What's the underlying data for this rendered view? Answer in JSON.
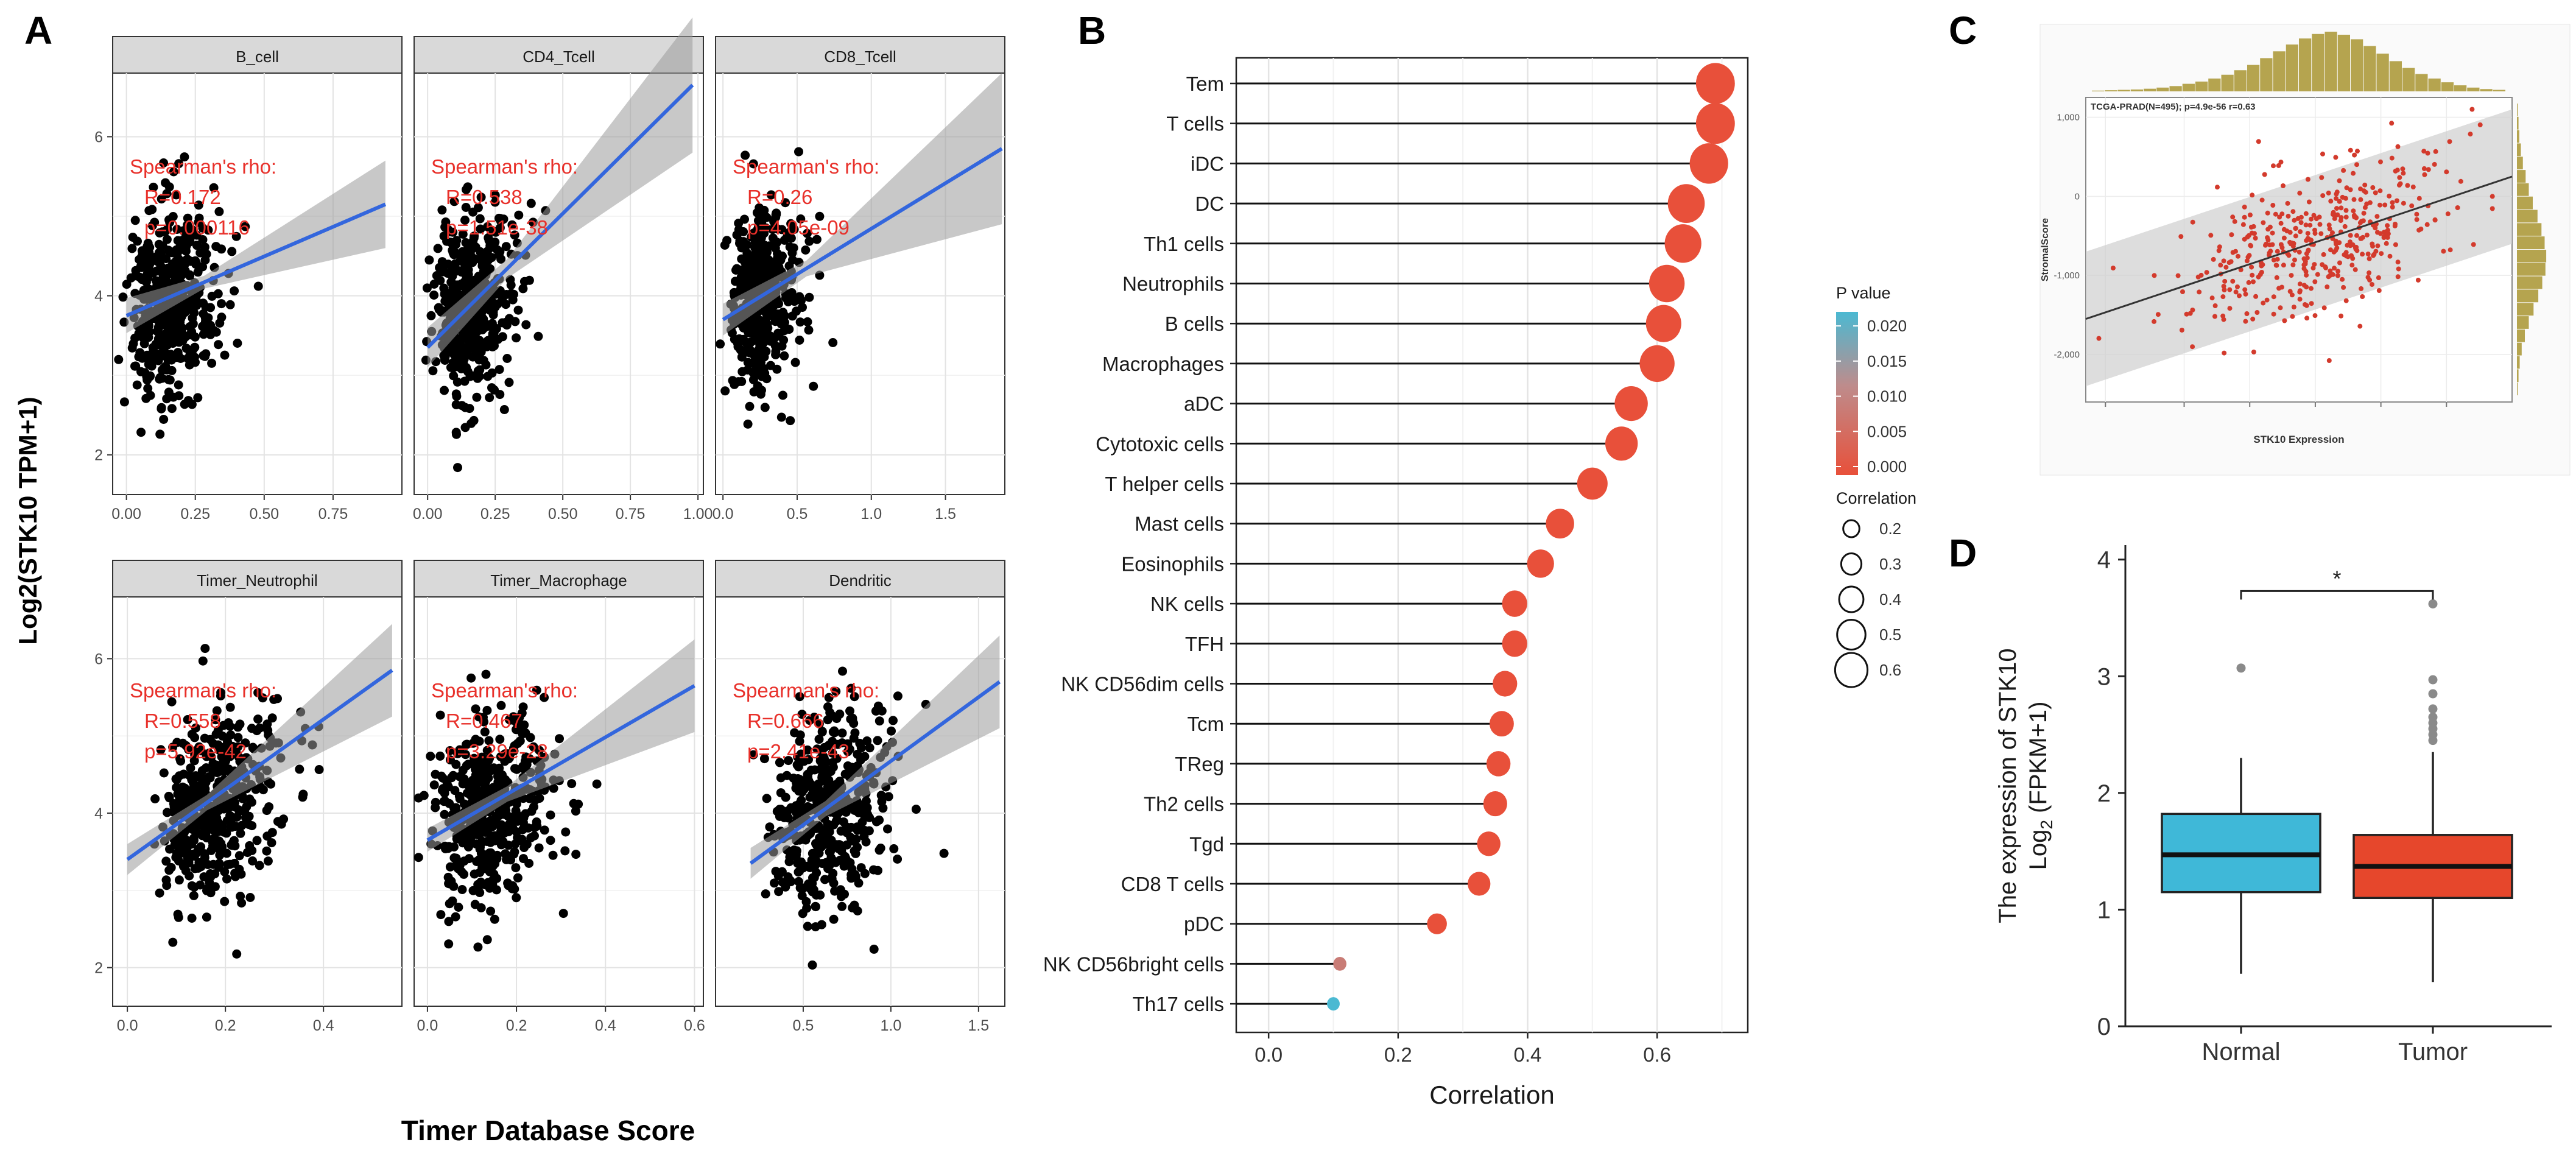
{
  "figure": {
    "panel_labels": [
      "A",
      "B",
      "C",
      "D"
    ]
  },
  "chart_data": [
    {
      "panel": "A",
      "type": "scatter",
      "ylabel": "Log2(STK10 TPM+1)",
      "xlabel": "Timer Database Score",
      "stat_label": "Spearman's rho:",
      "y_ticks": [
        "2",
        "4",
        "6"
      ],
      "ylim": [
        1.5,
        6.8
      ],
      "facets": [
        {
          "title": "B_cell",
          "xlim": [
            -0.05,
            1.0
          ],
          "x_ticks": [
            "0.00",
            "0.25",
            "0.50",
            "0.75"
          ],
          "x_tick_values": [
            0,
            0.25,
            0.5,
            0.75
          ],
          "r_text": "R=0.172",
          "p_text": "p=0.000116",
          "line": [
            [
              0,
              3.75
            ],
            [
              0.94,
              5.15
            ]
          ],
          "band": [
            0.08,
            0.22,
            0.55
          ],
          "xc": 0.12,
          "xs": 0.11,
          "yc": 3.9,
          "ys": 0.6,
          "seed": 11
        },
        {
          "title": "CD4_Tcell",
          "xlim": [
            -0.05,
            1.02
          ],
          "x_ticks": [
            "0.00",
            "0.25",
            "0.50",
            "0.75",
            "1.00"
          ],
          "x_tick_values": [
            0,
            0.25,
            0.5,
            0.75,
            1.0
          ],
          "r_text": "R=0.538",
          "p_text": "p=1.51e-38",
          "line": [
            [
              0,
              3.35
            ],
            [
              0.98,
              6.65
            ]
          ],
          "band": [
            0.12,
            0.25,
            0.85
          ],
          "xc": 0.12,
          "xs": 0.09,
          "yc": 3.9,
          "ys": 0.55,
          "seed": 22
        },
        {
          "title": "CD8_Tcell",
          "xlim": [
            -0.05,
            1.9
          ],
          "x_ticks": [
            "0.0",
            "0.5",
            "1.0",
            "1.5"
          ],
          "x_tick_values": [
            0,
            0.5,
            1.0,
            1.5
          ],
          "r_text": "R=0.26",
          "p_text": "p=4.05e-09",
          "line": [
            [
              0,
              3.7
            ],
            [
              1.88,
              5.85
            ]
          ],
          "band": [
            0.1,
            0.2,
            0.95
          ],
          "xc": 0.2,
          "xs": 0.15,
          "yc": 4.0,
          "ys": 0.55,
          "seed": 33
        },
        {
          "title": "Timer_Neutrophil",
          "xlim": [
            -0.03,
            0.56
          ],
          "x_ticks": [
            "0.0",
            "0.2",
            "0.4"
          ],
          "x_tick_values": [
            0,
            0.2,
            0.4
          ],
          "r_text": "R=0.558",
          "p_text": "p=5.92e-42",
          "line": [
            [
              0,
              3.4
            ],
            [
              0.54,
              5.85
            ]
          ],
          "band": [
            0.1,
            0.2,
            0.6
          ],
          "xc": 0.15,
          "xs": 0.08,
          "yc": 4.0,
          "ys": 0.6,
          "seed": 44
        },
        {
          "title": "Timer_Macrophage",
          "xlim": [
            -0.03,
            0.62
          ],
          "x_ticks": [
            "0.0",
            "0.2",
            "0.4",
            "0.6"
          ],
          "x_tick_values": [
            0,
            0.2,
            0.4,
            0.6
          ],
          "r_text": "R=0.467",
          "p_text": "p=3.29e-28",
          "line": [
            [
              0,
              3.65
            ],
            [
              0.6,
              5.65
            ]
          ],
          "band": [
            0.1,
            0.15,
            0.6
          ],
          "xc": 0.1,
          "xs": 0.09,
          "yc": 4.0,
          "ys": 0.6,
          "seed": 55
        },
        {
          "title": "Dendritic",
          "xlim": [
            0.0,
            1.65
          ],
          "x_ticks": [
            "0.5",
            "1.0",
            "1.5"
          ],
          "x_tick_values": [
            0.5,
            1.0,
            1.5
          ],
          "r_text": "R=0.666",
          "p_text": "p=2.41e-43",
          "line": [
            [
              0.2,
              3.35
            ],
            [
              1.62,
              5.7
            ]
          ],
          "band": [
            0.1,
            0.2,
            0.6
          ],
          "xc": 0.55,
          "xs": 0.22,
          "yc": 4.0,
          "ys": 0.6,
          "seed": 66
        }
      ]
    },
    {
      "panel": "B",
      "type": "lollipop",
      "xlabel": "Correlation",
      "xlim": [
        -0.05,
        0.74
      ],
      "x_ticks": [
        "0.0",
        "0.2",
        "0.4",
        "0.6"
      ],
      "x_tick_values": [
        0,
        0.2,
        0.4,
        0.6
      ],
      "categories": [
        "Tem",
        "T cells",
        "iDC",
        "DC",
        "Th1 cells",
        "Neutrophils",
        "B cells",
        "Macrophages",
        "aDC",
        "Cytotoxic cells",
        "T helper cells",
        "Mast cells",
        "Eosinophils",
        "NK cells",
        "TFH",
        "NK CD56dim cells",
        "Tcm",
        "TReg",
        "Th2 cells",
        "Tgd",
        "CD8 T cells",
        "pDC",
        "NK CD56bright cells",
        "Th17 cells"
      ],
      "values": [
        0.69,
        0.69,
        0.68,
        0.645,
        0.64,
        0.615,
        0.61,
        0.6,
        0.56,
        0.545,
        0.5,
        0.45,
        0.42,
        0.38,
        0.38,
        0.365,
        0.36,
        0.355,
        0.35,
        0.34,
        0.325,
        0.26,
        0.11,
        0.1
      ],
      "pvalues": [
        0,
        0,
        0,
        0,
        0,
        0,
        0,
        0,
        0,
        0,
        0,
        0,
        0,
        0,
        0,
        0,
        0,
        0,
        0,
        0,
        0,
        0,
        0.008,
        0.022
      ],
      "legend_pvalue_title": "P value",
      "legend_pvalue_ticks": [
        "0.020",
        "0.015",
        "0.010",
        "0.005",
        "0.000"
      ],
      "legend_pvalue_values": [
        0.02,
        0.015,
        0.01,
        0.005,
        0.0
      ],
      "legend_size_title": "Correlation",
      "legend_size_labels": [
        "0.2",
        "0.3",
        "0.4",
        "0.5",
        "0.6"
      ],
      "legend_size_values": [
        0.2,
        0.3,
        0.4,
        0.5,
        0.6
      ]
    },
    {
      "panel": "C",
      "type": "scatter",
      "annotation": "TCGA-PRAD(N=495); p=4.9e-56 r=0.63",
      "xlabel": "STK10 Expression",
      "ylabel": "StromalScore",
      "y_ticks": [
        "1,000",
        "0",
        "-1,000",
        "-2,000"
      ],
      "y_tick_values": [
        1000,
        0,
        -1000,
        -2000
      ],
      "ylim": [
        -2600,
        1250
      ],
      "xlim": [
        0,
        6.5
      ],
      "x_tick_values": [
        0.3,
        1.5,
        2.5,
        3.5,
        4.5,
        5.5
      ],
      "line": [
        [
          0,
          -1550
        ],
        [
          6.5,
          250
        ]
      ],
      "n": 495
    },
    {
      "panel": "D",
      "type": "boxplot",
      "categories": [
        "Normal",
        "Tumor"
      ],
      "colors": [
        "#3fb8d8",
        "#e6472c"
      ],
      "ylabel_line1": "The expression of STK10",
      "ylabel_line2": "Log",
      "ylabel_sub": "2",
      "ylabel_tail": " (FPKM+1)",
      "ylim": [
        0,
        4
      ],
      "y_ticks": [
        "0",
        "1",
        "2",
        "3",
        "4"
      ],
      "y_tick_values": [
        0,
        1,
        2,
        3,
        4
      ],
      "boxes": [
        {
          "q1": 1.15,
          "median": 1.47,
          "q3": 1.82,
          "whisker_low": 0.45,
          "whisker_high": 2.3,
          "outliers": [
            3.07
          ]
        },
        {
          "q1": 1.1,
          "median": 1.37,
          "q3": 1.64,
          "whisker_low": 0.38,
          "whisker_high": 2.35,
          "outliers": [
            2.45,
            2.5,
            2.55,
            2.6,
            2.65,
            2.72,
            2.85,
            2.97,
            3.62
          ]
        }
      ],
      "significance": "*"
    }
  ]
}
